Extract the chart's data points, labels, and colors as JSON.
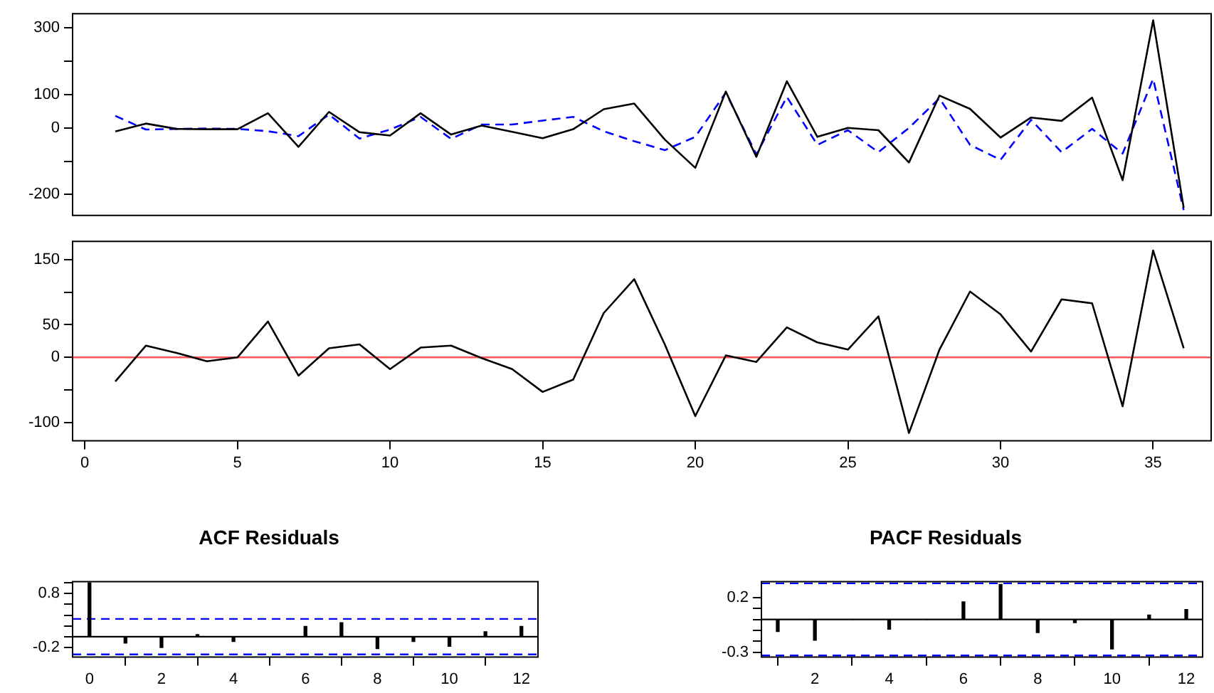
{
  "chart_data": [
    {
      "type": "line",
      "x": [
        1,
        2,
        3,
        4,
        5,
        6,
        7,
        8,
        9,
        10,
        11,
        12,
        13,
        14,
        15,
        16,
        17,
        18,
        19,
        20,
        21,
        22,
        23,
        24,
        25,
        26,
        27,
        28,
        29,
        30,
        31,
        32,
        33,
        34,
        35,
        36
      ],
      "xlim": [
        -0.4,
        36.9
      ],
      "ylim": [
        -263,
        343
      ],
      "yticks": [
        -200,
        {
          "value": -100,
          "label": null
        },
        0,
        100,
        {
          "value": 200,
          "label": null
        },
        300
      ],
      "tick_labels": "y",
      "marker": "none",
      "series": [
        {
          "color": "#000000",
          "line_style": "solid",
          "values": [
            -11,
            13,
            -3,
            -4,
            -4,
            44,
            -57,
            48,
            -13,
            -23,
            44,
            -20,
            7,
            -12,
            -31,
            -4,
            56,
            73,
            -35,
            -120,
            109,
            -87,
            140,
            -27,
            0,
            -7,
            -104,
            97,
            57,
            -29,
            31,
            21,
            91,
            -157,
            323,
            -240
          ]
        },
        {
          "color": "#0000ff",
          "line_style": "dashed",
          "values": [
            36,
            -5,
            -3,
            -2,
            -3,
            -10,
            -25,
            40,
            -32,
            -5,
            33,
            -33,
            10,
            10,
            22,
            33,
            -10,
            -40,
            -67,
            -27,
            106,
            -80,
            93,
            -51,
            -7,
            -73,
            0,
            89,
            -51,
            -96,
            24,
            -73,
            -3,
            -77,
            147,
            -247
          ]
        }
      ]
    },
    {
      "type": "line",
      "x": [
        1,
        2,
        3,
        4,
        5,
        6,
        7,
        8,
        9,
        10,
        11,
        12,
        13,
        14,
        15,
        16,
        17,
        18,
        19,
        20,
        21,
        22,
        23,
        24,
        25,
        26,
        27,
        28,
        29,
        30,
        31,
        32,
        33,
        34,
        35,
        36
      ],
      "xlim": [
        -0.4,
        36.9
      ],
      "xticks": [
        0,
        5,
        10,
        15,
        20,
        25,
        30,
        35
      ],
      "ylim": [
        -128,
        178
      ],
      "yticks": [
        -100,
        {
          "value": -50,
          "label": null
        },
        0,
        50,
        {
          "value": 100,
          "label": null
        },
        150
      ],
      "marker": "none",
      "series": [
        {
          "color": "#000000",
          "values": [
            -37,
            18,
            7,
            -6,
            0,
            55,
            -28,
            14,
            20,
            -18,
            15,
            18,
            -1,
            -18,
            -53,
            -34,
            68,
            120,
            20,
            -90,
            3,
            -7,
            46,
            23,
            12,
            63,
            -116,
            12,
            101,
            66,
            9,
            89,
            83,
            -75,
            164,
            14
          ]
        }
      ],
      "ref_lines": [
        {
          "axis": "y",
          "value": 0,
          "color": "#ff5555",
          "line_style": "solid"
        }
      ]
    },
    {
      "type": "bar",
      "title": "ACF Residuals",
      "x": [
        0,
        1,
        2,
        3,
        4,
        5,
        6,
        7,
        8,
        9,
        10,
        11,
        12
      ],
      "xlim": [
        -0.47,
        12.46
      ],
      "xticks": [
        0,
        2,
        4,
        6,
        8,
        10,
        12
      ],
      "ylim": [
        -0.38,
        1.02
      ],
      "yticks": [
        {
          "value": -0.2,
          "label": "-0.2"
        },
        {
          "value": 0,
          "label": null
        },
        {
          "value": 0.2,
          "label": null
        },
        {
          "value": 0.4,
          "label": null
        },
        {
          "value": 0.6,
          "label": null
        },
        {
          "value": 0.8,
          "label": "0.8"
        },
        {
          "value": 1,
          "label": null
        }
      ],
      "series": [
        {
          "color": "#000000",
          "values": [
            1,
            -0.12,
            -0.2,
            0.04,
            -0.09,
            0,
            0.19,
            0.26,
            -0.22,
            -0.09,
            -0.18,
            0.09,
            0.19
          ]
        }
      ],
      "ref_lines": [
        {
          "axis": "y",
          "value": 0,
          "color": "#000000",
          "line_style": "solid"
        },
        {
          "axis": "y",
          "value": 0.33,
          "color": "#0000ff",
          "line_style": "dashed"
        },
        {
          "axis": "y",
          "value": -0.33,
          "color": "#0000ff",
          "line_style": "dashed"
        }
      ]
    },
    {
      "type": "bar",
      "title": "PACF Residuals",
      "x": [
        1,
        2,
        3,
        4,
        5,
        6,
        7,
        8,
        9,
        10,
        11,
        12
      ],
      "xlim": [
        0.56,
        12.44
      ],
      "xticks": [
        2,
        4,
        6,
        8,
        10,
        12
      ],
      "ylim": [
        -0.345,
        0.345
      ],
      "yticks": [
        {
          "value": -0.3,
          "label": "-0.3"
        },
        {
          "value": -0.2,
          "label": null
        },
        {
          "value": -0.1,
          "label": null
        },
        {
          "value": 0,
          "label": null
        },
        {
          "value": 0.1,
          "label": null
        },
        {
          "value": 0.2,
          "label": "0.2"
        }
      ],
      "series": [
        {
          "color": "#000000",
          "values": [
            -0.11,
            -0.19,
            0,
            -0.09,
            0,
            0.16,
            0.32,
            -0.12,
            -0.03,
            -0.27,
            0.04,
            0.09
          ]
        }
      ],
      "ref_lines": [
        {
          "axis": "y",
          "value": 0,
          "color": "#000000",
          "line_style": "solid"
        },
        {
          "axis": "y",
          "value": 0.33,
          "color": "#0000ff",
          "line_style": "dashed"
        },
        {
          "axis": "y",
          "value": -0.33,
          "color": "#0000ff",
          "line_style": "dashed"
        }
      ]
    }
  ]
}
